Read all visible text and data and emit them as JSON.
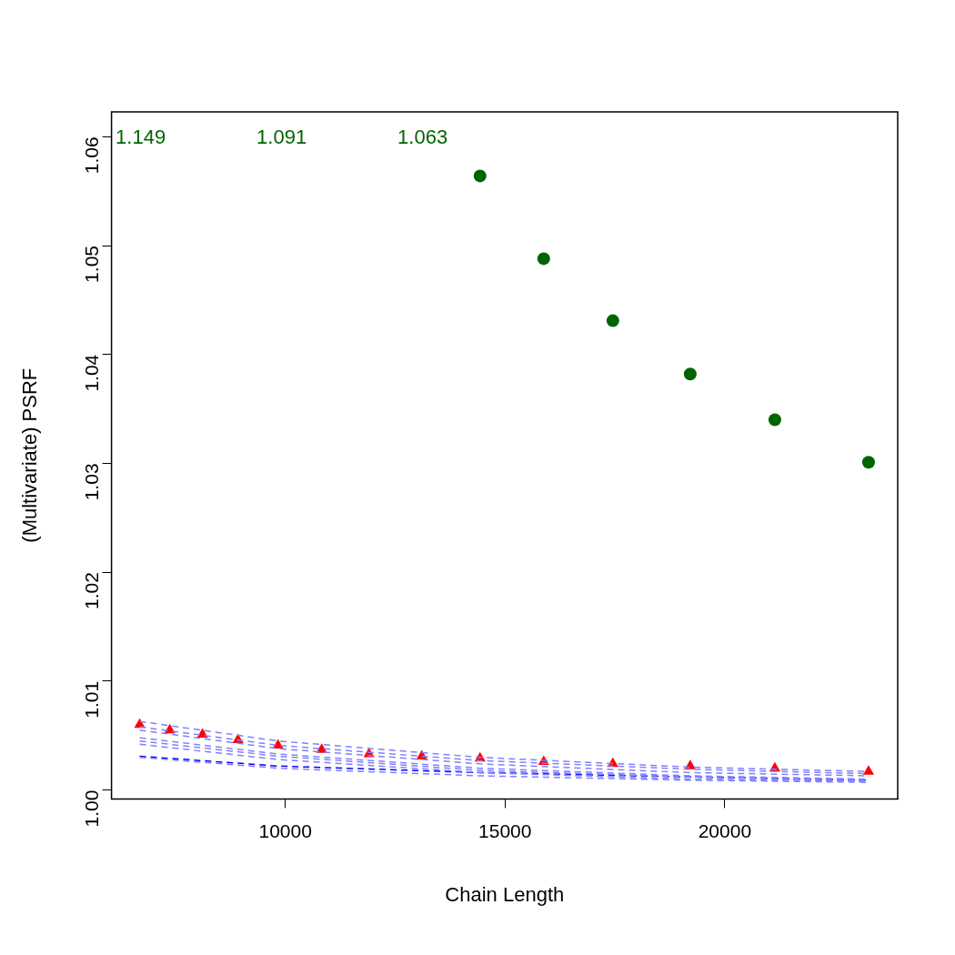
{
  "chart_data": {
    "type": "scatter",
    "xlabel": "Chain Length",
    "ylabel": "(Multivariate) PSRF",
    "xlim": [
      6046,
      23934
    ],
    "xticks": [
      10000,
      15000,
      20000
    ],
    "ylim": [
      0.99918,
      1.06228
    ],
    "yticks": [
      {
        "value": 1,
        "label": "1.00"
      },
      1.01,
      1.02,
      1.03,
      1.04,
      1.05,
      1.06
    ],
    "grid": false,
    "legend": false,
    "annotations": [
      "1.149",
      "1.091",
      "1.063"
    ],
    "series": [
      {
        "type": "line",
        "color": "#8080ff",
        "marker": "none",
        "line_style": "dashed",
        "x": [
          6687,
          9834,
          14431,
          19213,
          23271
        ],
        "values": [
          1.0063,
          1.0045,
          1.003,
          1.0021,
          1.0017
        ]
      },
      {
        "type": "line",
        "color": "#8080ff",
        "marker": "none",
        "line_style": "dashed",
        "x": [
          6687,
          9834,
          14431,
          19213,
          23271
        ],
        "values": [
          1.0058,
          1.0041,
          1.0027,
          1.0019,
          1.0015
        ]
      },
      {
        "type": "line",
        "color": "#8080ff",
        "marker": "none",
        "line_style": "dashed",
        "x": [
          6687,
          9834,
          14431,
          19213,
          23271
        ],
        "values": [
          1.0055,
          1.0038,
          1.0024,
          1.0016,
          1.0013
        ]
      },
      {
        "type": "line",
        "color": "#8080ff",
        "marker": "none",
        "line_style": "dashed",
        "x": [
          6687,
          9834,
          14431,
          19213,
          23271
        ],
        "values": [
          1.0048,
          1.0033,
          1.002,
          1.0013,
          1.001
        ]
      },
      {
        "type": "line",
        "color": "#8080ff",
        "marker": "none",
        "line_style": "dashed",
        "x": [
          6687,
          9834,
          14431,
          19213,
          23271
        ],
        "values": [
          1.0045,
          1.0031,
          1.0018,
          1.0012,
          1.0009
        ]
      },
      {
        "type": "line",
        "color": "#8080ff",
        "marker": "none",
        "line_style": "dashed",
        "x": [
          6687,
          9834,
          14431,
          19213,
          23271
        ],
        "values": [
          1.0042,
          1.0028,
          1.0016,
          1.001,
          1.0008
        ]
      },
      {
        "type": "line",
        "color": "#8080ff",
        "marker": "none",
        "line_style": "dashed",
        "x": [
          6687,
          9834,
          14431,
          19213,
          23271
        ],
        "values": [
          1.003,
          1.002,
          1.0013,
          1.0009,
          1.0007
        ]
      },
      {
        "type": "line",
        "color": "#0000ff",
        "marker": "none",
        "line_style": "dashed",
        "x": [
          6687,
          9834,
          14431,
          19213,
          23271
        ],
        "values": [
          1.0031,
          1.0022,
          1.0016,
          1.0012,
          1.0009
        ]
      },
      {
        "type": "scatter",
        "color": "#ff0000",
        "marker": "triangle",
        "x": [
          6687,
          7371,
          8116,
          8923,
          9834,
          10828,
          11905,
          13106,
          14431,
          15880,
          17453,
          19213,
          21139,
          23271
        ],
        "values": [
          1.006,
          1.0055,
          1.0051,
          1.0046,
          1.0041,
          1.0037,
          1.0033,
          1.0031,
          1.0029,
          1.0026,
          1.0024,
          1.0022,
          1.002,
          1.0017
        ]
      },
      {
        "type": "scatter",
        "color": "#006400",
        "marker": "circle",
        "x": [
          14431,
          15880,
          17453,
          19213,
          21139,
          23271
        ],
        "values": [
          1.0564,
          1.0488,
          1.0431,
          1.0382,
          1.034,
          1.0301
        ]
      }
    ]
  }
}
